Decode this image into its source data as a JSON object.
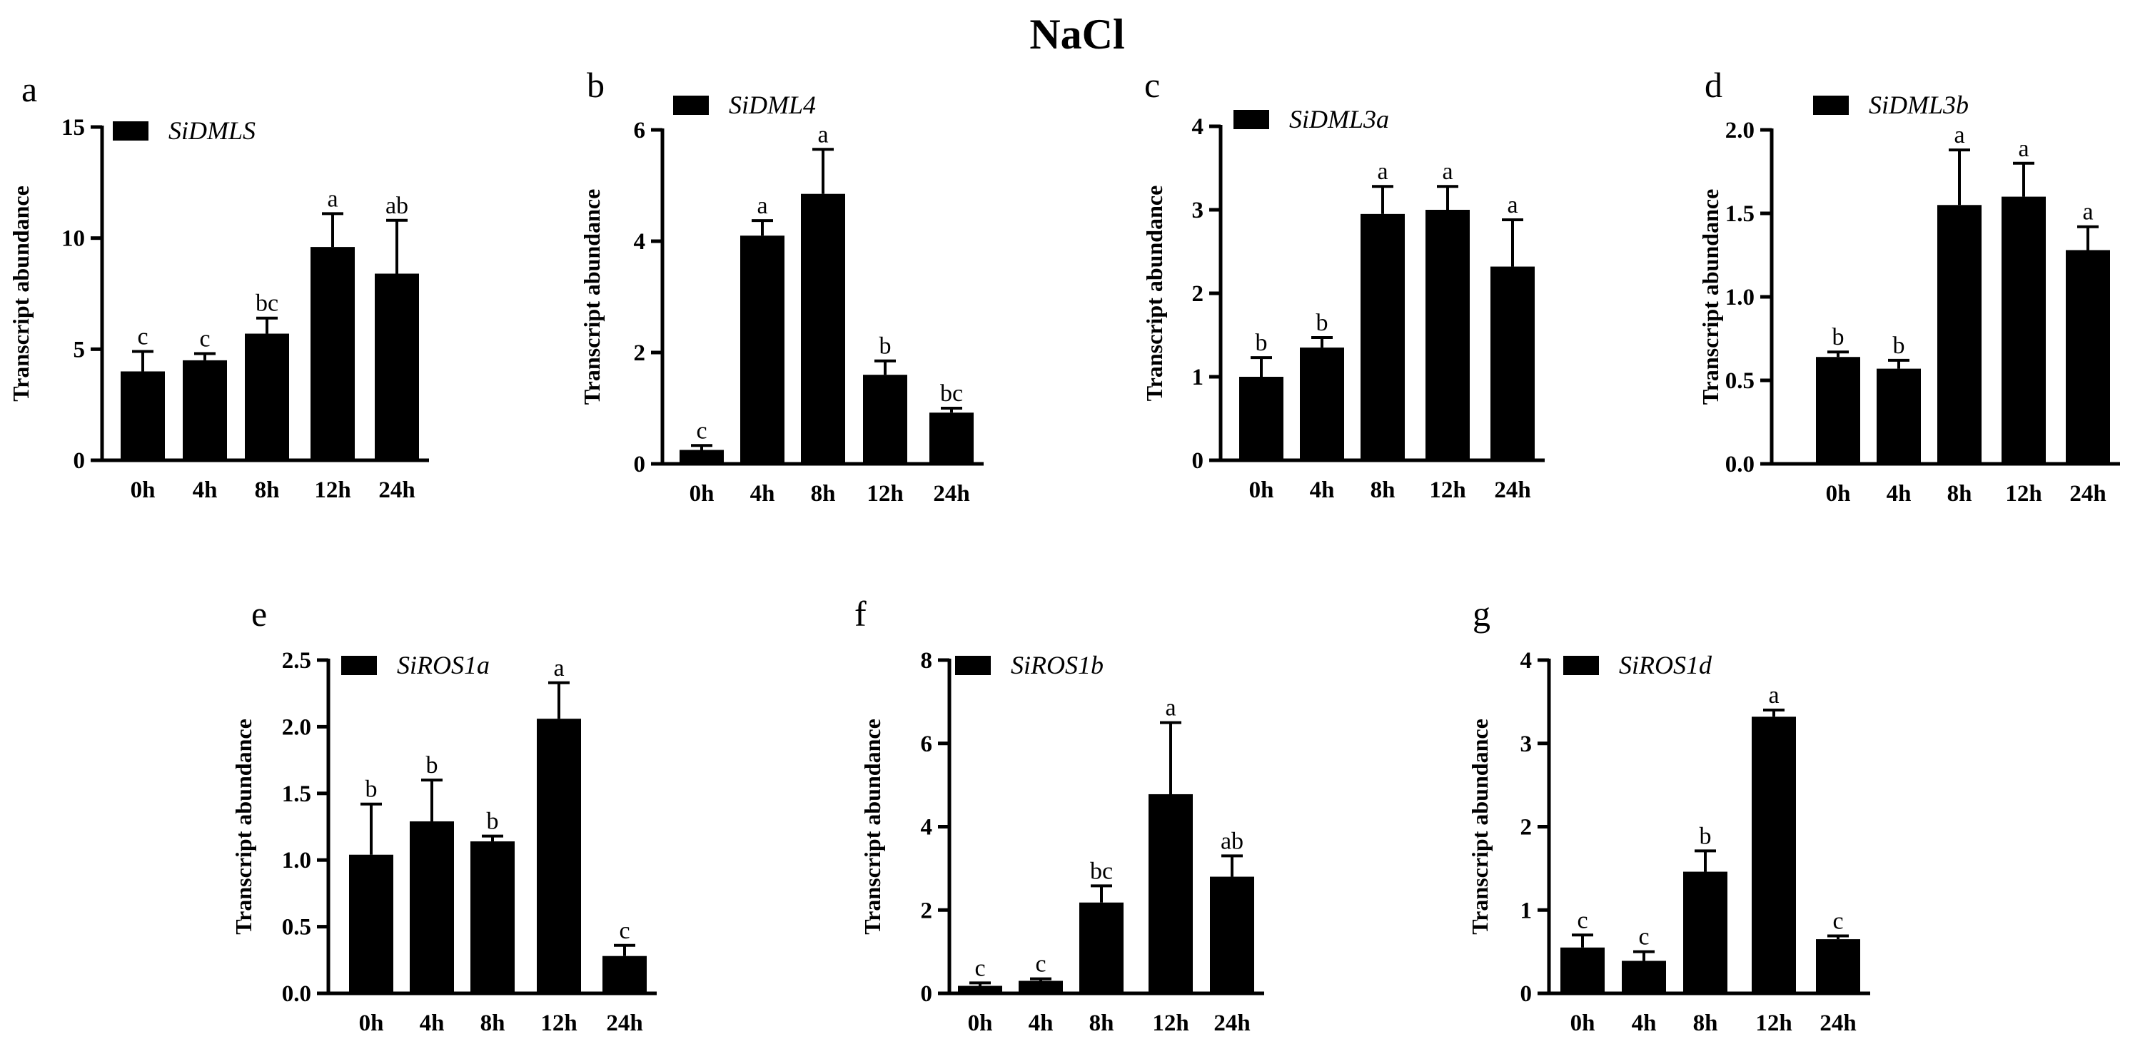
{
  "figure_title": "NaCl",
  "colors": {
    "bar": "#000000",
    "axis": "#000000",
    "background": "#ffffff"
  },
  "chart_data": [
    {
      "panel": "a",
      "type": "bar",
      "legend": "SiDMLS",
      "categories": [
        "0h",
        "4h",
        "8h",
        "12h",
        "24h"
      ],
      "values": [
        4.0,
        4.5,
        5.7,
        9.6,
        8.4
      ],
      "errors": [
        0.9,
        0.3,
        0.7,
        1.5,
        2.4
      ],
      "significance": [
        "c",
        "c",
        "bc",
        "a",
        "ab"
      ],
      "ylabel": "Transcript abundance",
      "xlabel": "",
      "ylim": [
        0,
        15
      ],
      "yticks": [
        0,
        5,
        10,
        15
      ],
      "ytick_labels": [
        "0",
        "5",
        "10",
        "15"
      ]
    },
    {
      "panel": "b",
      "type": "bar",
      "legend": "SiDML4",
      "categories": [
        "0h",
        "4h",
        "8h",
        "12h",
        "24h"
      ],
      "values": [
        0.25,
        4.1,
        4.85,
        1.6,
        0.92
      ],
      "errors": [
        0.08,
        0.27,
        0.8,
        0.25,
        0.08
      ],
      "significance": [
        "c",
        "a",
        "a",
        "b",
        "bc"
      ],
      "ylabel": "Transcript abundance",
      "xlabel": "",
      "ylim": [
        0,
        6
      ],
      "yticks": [
        0,
        2,
        4,
        6
      ],
      "ytick_labels": [
        "0",
        "2",
        "4",
        "6"
      ]
    },
    {
      "panel": "c",
      "type": "bar",
      "legend": "SiDML3a",
      "categories": [
        "0h",
        "4h",
        "8h",
        "12h",
        "24h"
      ],
      "values": [
        1.0,
        1.35,
        2.95,
        3.0,
        2.32
      ],
      "errors": [
        0.23,
        0.12,
        0.33,
        0.28,
        0.56
      ],
      "significance": [
        "b",
        "b",
        "a",
        "a",
        "a"
      ],
      "ylabel": "Transcript abundance",
      "xlabel": "",
      "ylim": [
        0,
        4
      ],
      "yticks": [
        0,
        1,
        2,
        3,
        4
      ],
      "ytick_labels": [
        "0",
        "1",
        "2",
        "3",
        "4"
      ]
    },
    {
      "panel": "d",
      "type": "bar",
      "legend": "SiDML3b",
      "categories": [
        "0h",
        "4h",
        "8h",
        "12h",
        "24h"
      ],
      "values": [
        0.64,
        0.57,
        1.55,
        1.6,
        1.28
      ],
      "errors": [
        0.03,
        0.05,
        0.33,
        0.2,
        0.14
      ],
      "significance": [
        "b",
        "b",
        "a",
        "a",
        "a"
      ],
      "ylabel": "Transcript abundance",
      "xlabel": "",
      "ylim": [
        0,
        2.0
      ],
      "yticks": [
        0,
        0.5,
        1.0,
        1.5,
        2.0
      ],
      "ytick_labels": [
        "0.0",
        "0.5",
        "1.0",
        "1.5",
        "2.0"
      ]
    },
    {
      "panel": "e",
      "type": "bar",
      "legend": "SiROS1a",
      "categories": [
        "0h",
        "4h",
        "8h",
        "12h",
        "24h"
      ],
      "values": [
        1.04,
        1.29,
        1.14,
        2.06,
        0.28
      ],
      "errors": [
        0.38,
        0.31,
        0.04,
        0.27,
        0.08
      ],
      "significance": [
        "b",
        "b",
        "b",
        "a",
        "c"
      ],
      "ylabel": "Transcript abundance",
      "xlabel": "",
      "ylim": [
        0,
        2.5
      ],
      "yticks": [
        0,
        0.5,
        1.0,
        1.5,
        2.0,
        2.5
      ],
      "ytick_labels": [
        "0.0",
        "0.5",
        "1.0",
        "1.5",
        "2.0",
        "2.5"
      ]
    },
    {
      "panel": "f",
      "type": "bar",
      "legend": "SiROS1b",
      "categories": [
        "0h",
        "4h",
        "8h",
        "12h",
        "24h"
      ],
      "values": [
        0.18,
        0.3,
        2.18,
        4.78,
        2.8
      ],
      "errors": [
        0.07,
        0.05,
        0.4,
        1.72,
        0.5
      ],
      "significance": [
        "c",
        "c",
        "bc",
        "a",
        "ab"
      ],
      "ylabel": "Transcript abundance",
      "xlabel": "",
      "ylim": [
        0,
        8
      ],
      "yticks": [
        0,
        2,
        4,
        6,
        8
      ],
      "ytick_labels": [
        "0",
        "2",
        "4",
        "6",
        "8"
      ]
    },
    {
      "panel": "g",
      "type": "bar",
      "legend": "SiROS1d",
      "categories": [
        "0h",
        "4h",
        "8h",
        "12h",
        "24h"
      ],
      "values": [
        0.55,
        0.39,
        1.46,
        3.32,
        0.65
      ],
      "errors": [
        0.15,
        0.11,
        0.25,
        0.08,
        0.04
      ],
      "significance": [
        "c",
        "c",
        "b",
        "a",
        "c"
      ],
      "ylabel": "Transcript abundance",
      "xlabel": "",
      "ylim": [
        0,
        4
      ],
      "yticks": [
        0,
        1,
        2,
        3,
        4
      ],
      "ytick_labels": [
        "0",
        "1",
        "2",
        "3",
        "4"
      ]
    }
  ]
}
